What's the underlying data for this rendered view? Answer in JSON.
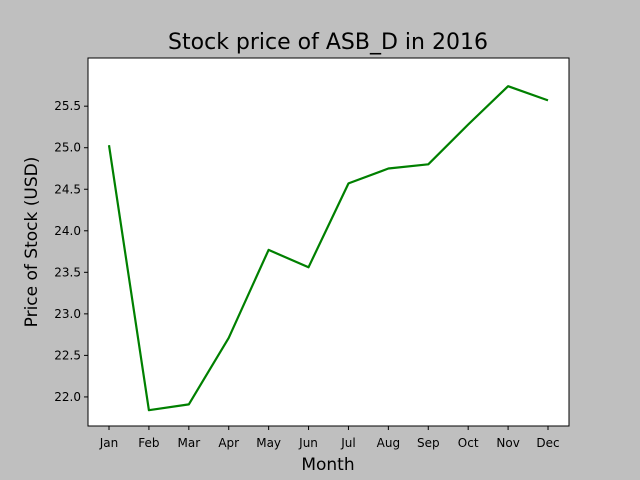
{
  "chart_data": {
    "type": "line",
    "title": "Stock price of ASB_D in 2016",
    "xlabel": "Month",
    "ylabel": "Price of Stock (USD)",
    "categories": [
      "Jan",
      "Feb",
      "Mar",
      "Apr",
      "May",
      "Jun",
      "Jul",
      "Aug",
      "Sep",
      "Oct",
      "Nov",
      "Dec"
    ],
    "series": [
      {
        "color": "#008000",
        "values": [
          25.03,
          21.84,
          21.91,
          22.71,
          23.77,
          23.56,
          24.57,
          24.75,
          24.8,
          25.28,
          25.74,
          25.57
        ]
      }
    ],
    "ylim": [
      21.65,
      26.08
    ],
    "yticks": [
      22.0,
      22.5,
      23.0,
      23.5,
      24.0,
      24.5,
      25.0,
      25.5
    ],
    "ytick_labels": [
      "22.0",
      "22.5",
      "23.0",
      "23.5",
      "24.0",
      "24.5",
      "25.0",
      "25.5"
    ],
    "grid": false,
    "background": "#bfbfbf",
    "plot_background": "#ffffff"
  }
}
